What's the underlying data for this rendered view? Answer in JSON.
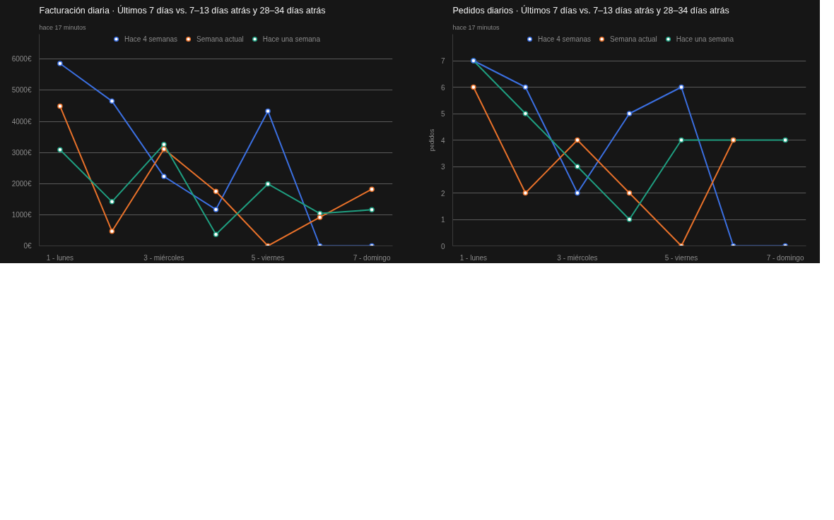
{
  "chart_data": [
    {
      "type": "line",
      "title": "Facturación diaria · Últimos 7 días vs. 7–13 días atrás y 28–34 días atrás",
      "subtitle": "hace 17 minutos",
      "categories": [
        "1 - lunes",
        null,
        "3 - miércoles",
        null,
        "5 - viernes",
        null,
        "7 - domingo"
      ],
      "series": [
        {
          "name": "Hace 4 semanas",
          "color": "#3b6fe0",
          "values": [
            5860,
            4650,
            2230,
            1170,
            4330,
            0,
            0
          ]
        },
        {
          "name": "Semana actual",
          "color": "#e8712a",
          "values": [
            4490,
            470,
            3110,
            1750,
            0,
            920,
            1820
          ]
        },
        {
          "name": "Hace una semana",
          "color": "#1f9e80",
          "values": [
            3090,
            1420,
            3260,
            370,
            1990,
            1040,
            1160
          ]
        }
      ],
      "ylim": [
        0,
        6800
      ],
      "yticks": [
        {
          "value": 0,
          "label": "0€"
        },
        {
          "value": 1000,
          "label": "1000€"
        },
        {
          "value": 2000,
          "label": "2000€"
        },
        {
          "value": 3000,
          "label": "3000€"
        },
        {
          "value": 4000,
          "label": "4000€"
        },
        {
          "value": 5000,
          "label": "5000€"
        },
        {
          "value": 6000,
          "label": "6000€"
        }
      ],
      "grid": "y",
      "legend": "top",
      "marker": "circle",
      "line_style": "solid"
    },
    {
      "type": "line",
      "title": "Pedidos diarios · Últimos 7 días vs. 7–13 días atrás y 28–34 días atrás",
      "subtitle": "hace 17 minutos",
      "ylabel": "pedidos",
      "categories": [
        "1 - lunes",
        null,
        "3 - miércoles",
        null,
        "5 - viernes",
        null,
        "7 - domingo"
      ],
      "series": [
        {
          "name": "Hace 4 semanas",
          "color": "#3b6fe0",
          "values": [
            7,
            6,
            2,
            5,
            6,
            0,
            0
          ]
        },
        {
          "name": "Semana actual",
          "color": "#e8712a",
          "values": [
            6,
            2,
            4,
            2,
            0,
            4,
            null
          ]
        },
        {
          "name": "Hace una semana",
          "color": "#1f9e80",
          "values": [
            7,
            5,
            3,
            1,
            4,
            4,
            4
          ]
        }
      ],
      "ylim": [
        0,
        8
      ],
      "yticks": [
        0,
        1,
        2,
        3,
        4,
        5,
        6,
        7
      ],
      "grid": "y",
      "legend": "top",
      "marker": "circle",
      "line_style": "solid"
    }
  ]
}
